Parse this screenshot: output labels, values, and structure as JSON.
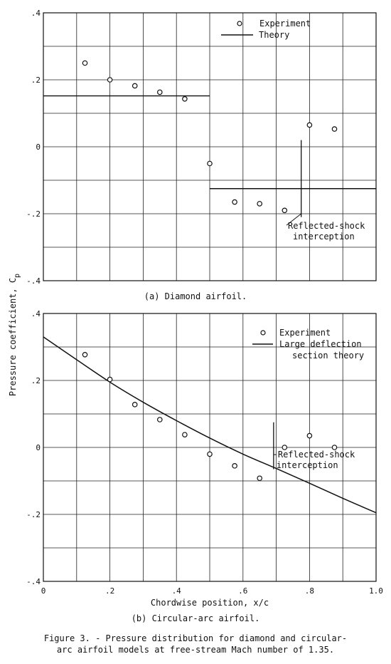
{
  "ylabel": "Pressure coefficient, C",
  "ylabel_sub": "p",
  "xlabel": "Chordwise position, x/c",
  "caption_line1": "Figure 3. - Pressure distribution for diamond and circular-",
  "caption_line2": "arc airfoil models at free-stream Mach number of 1.35.",
  "chart_data": [
    {
      "type": "scatter",
      "subtitle": "(a) Diamond airfoil.",
      "xlim": [
        0,
        1.0
      ],
      "ylim": [
        -0.4,
        0.4
      ],
      "grid": true,
      "ytick_labels": [
        ".4",
        ".2",
        "0",
        "-.2",
        "-.4"
      ],
      "ytick_values": [
        0.4,
        0.2,
        0,
        -0.2,
        -0.4
      ],
      "legend": [
        "Experiment",
        "Theory"
      ],
      "legend_position": "top-right",
      "series": [
        {
          "name": "Experiment",
          "kind": "points",
          "x": [
            0.125,
            0.2,
            0.275,
            0.35,
            0.425,
            0.5,
            0.575,
            0.65,
            0.725,
            0.8,
            0.875
          ],
          "y": [
            0.25,
            0.2,
            0.182,
            0.163,
            0.143,
            -0.05,
            -0.165,
            -0.17,
            -0.19,
            0.065,
            0.053
          ]
        },
        {
          "name": "Theory",
          "kind": "segments",
          "segments": [
            [
              [
                0,
                0.152
              ],
              [
                0.5,
                0.152
              ]
            ],
            [
              [
                0.5,
                -0.125
              ],
              [
                1.0,
                -0.125
              ]
            ]
          ]
        }
      ],
      "annotation": {
        "line1": "Reflected-shock",
        "line2": "interception",
        "shock_x": 0.775,
        "shock_y": [
          -0.21,
          0.02
        ],
        "leader_to": [
          0.775,
          -0.2
        ]
      }
    },
    {
      "type": "scatter",
      "subtitle": "(b) Circular-arc airfoil.",
      "xlim": [
        0,
        1.0
      ],
      "ylim": [
        -0.4,
        0.4
      ],
      "grid": true,
      "ytick_labels": [
        ".4",
        ".2",
        "0",
        "-.2",
        "-.4"
      ],
      "ytick_values": [
        0.4,
        0.2,
        0,
        -0.2,
        -0.4
      ],
      "xtick_labels": [
        "0",
        ".2",
        ".4",
        ".6",
        ".8",
        "1.0"
      ],
      "xtick_values": [
        0,
        0.2,
        0.4,
        0.6,
        0.8,
        1.0
      ],
      "legend": [
        "Experiment",
        "Large deflection",
        "section theory"
      ],
      "legend_position": "top-right",
      "series": [
        {
          "name": "Experiment",
          "kind": "points",
          "x": [
            0.125,
            0.2,
            0.275,
            0.35,
            0.425,
            0.5,
            0.575,
            0.65,
            0.725,
            0.8,
            0.875
          ],
          "y": [
            0.277,
            0.203,
            0.128,
            0.083,
            0.038,
            -0.02,
            -0.055,
            -0.092,
            0.0,
            0.035,
            0.0
          ]
        },
        {
          "name": "Large deflection section theory",
          "kind": "curve",
          "x": [
            0,
            0.1,
            0.2,
            0.3,
            0.4,
            0.5,
            0.6,
            0.7,
            0.8,
            0.9,
            1.0
          ],
          "y": [
            0.33,
            0.262,
            0.195,
            0.135,
            0.08,
            0.028,
            -0.02,
            -0.063,
            -0.107,
            -0.152,
            -0.195
          ]
        }
      ],
      "annotation": {
        "line1": "Reflected-shock",
        "line2": "interception",
        "shock_x": 0.692,
        "shock_y": [
          -0.065,
          0.075
        ],
        "leader_to": [
          0.692,
          0.0
        ]
      }
    }
  ]
}
